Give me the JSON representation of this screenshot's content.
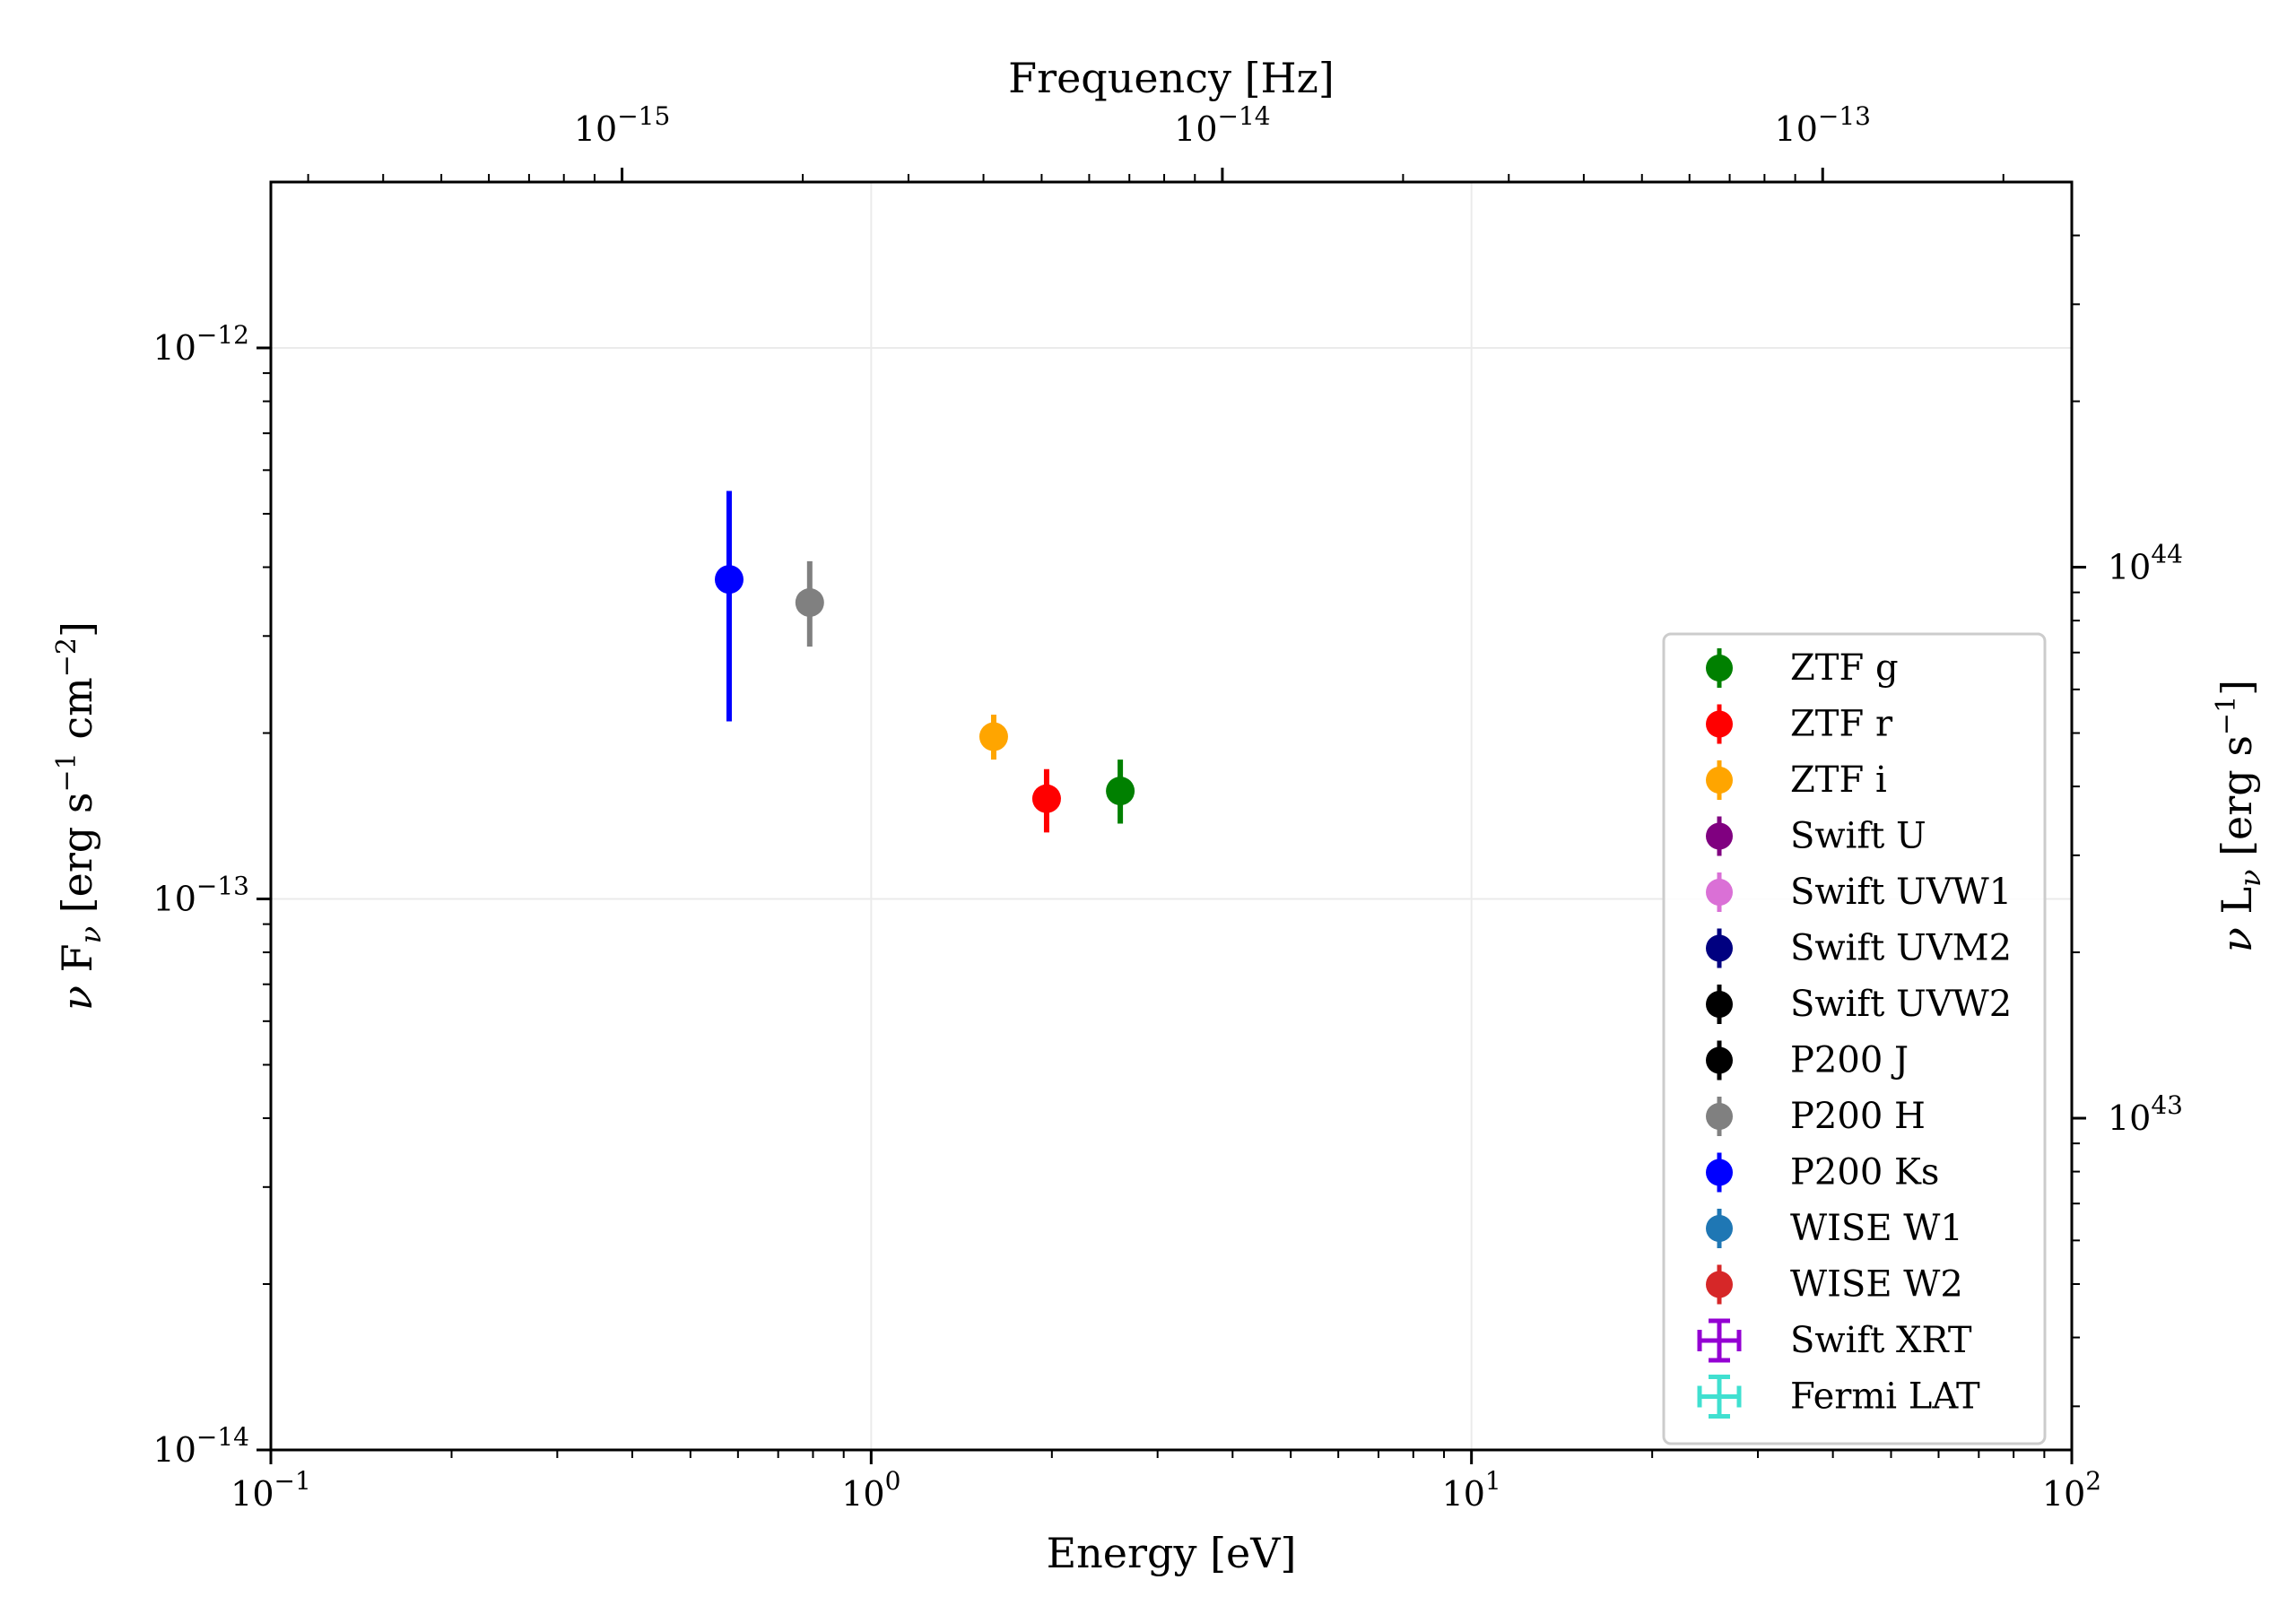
{
  "chart_data": {
    "type": "scatter",
    "title": "",
    "xlabel": "Energy [eV]",
    "ylabel": "ν F_ν [erg s⁻¹ cm⁻²]",
    "top_xlabel": "Frequency [Hz]",
    "right_ylabel": "ν L_ν [erg s⁻¹]",
    "xscale": "log",
    "yscale": "log",
    "xlim": [
      0.1,
      100
    ],
    "ylim": [
      1e-14,
      2e-12
    ],
    "x_ticks": [
      {
        "value": 0.1,
        "base": "10",
        "exp": "−1"
      },
      {
        "value": 1,
        "base": "10",
        "exp": "0"
      },
      {
        "value": 10,
        "base": "10",
        "exp": "1"
      },
      {
        "value": 100,
        "base": "10",
        "exp": "2"
      }
    ],
    "y_ticks": [
      {
        "value": 1e-14,
        "base": "10",
        "exp": "−14"
      },
      {
        "value": 1e-13,
        "base": "10",
        "exp": "−13"
      },
      {
        "value": 1e-12,
        "base": "10",
        "exp": "−12"
      }
    ],
    "top_ticks": [
      {
        "value": 1e-15,
        "base": "10",
        "exp": "−15"
      },
      {
        "value": 1e-14,
        "base": "10",
        "exp": "−14"
      },
      {
        "value": 1e-13,
        "base": "10",
        "exp": "−13"
      }
    ],
    "top_xlim": [
      2.6e-16,
      2.6e-13
    ],
    "right_ticks": [
      {
        "value": 1e+43,
        "base": "10",
        "exp": "43"
      },
      {
        "value": 1e+44,
        "base": "10",
        "exp": "44"
      }
    ],
    "right_ylim": [
      2.5e+42,
      5e+44
    ],
    "grid": true,
    "legend_position": "lower-right",
    "series": [
      {
        "name": "ZTF g",
        "color": "#008000",
        "marker": "point",
        "points": [
          {
            "x": 2.6,
            "y": 1.57e-13,
            "ylo": 1.37e-13,
            "yhi": 1.79e-13
          }
        ]
      },
      {
        "name": "ZTF r",
        "color": "#ff0000",
        "marker": "point",
        "points": [
          {
            "x": 1.96,
            "y": 1.52e-13,
            "ylo": 1.32e-13,
            "yhi": 1.72e-13
          }
        ]
      },
      {
        "name": "ZTF i",
        "color": "#ffa500",
        "marker": "point",
        "points": [
          {
            "x": 1.6,
            "y": 1.97e-13,
            "ylo": 1.79e-13,
            "yhi": 2.16e-13
          }
        ]
      },
      {
        "name": "Swift U",
        "color": "#800080",
        "marker": "point",
        "points": []
      },
      {
        "name": "Swift UVW1",
        "color": "#da70d6",
        "marker": "point",
        "points": []
      },
      {
        "name": "Swift UVM2",
        "color": "#000080",
        "marker": "point",
        "points": []
      },
      {
        "name": "Swift UVW2",
        "color": "#000000",
        "marker": "point",
        "points": []
      },
      {
        "name": "P200 J",
        "color": "#000000",
        "marker": "point",
        "points": []
      },
      {
        "name": "P200 H",
        "color": "#808080",
        "marker": "point",
        "points": [
          {
            "x": 0.79,
            "y": 3.45e-13,
            "ylo": 2.87e-13,
            "yhi": 4.1e-13
          }
        ]
      },
      {
        "name": "P200 Ks",
        "color": "#0000ff",
        "marker": "point",
        "points": [
          {
            "x": 0.58,
            "y": 3.8e-13,
            "ylo": 2.1e-13,
            "yhi": 5.5e-13
          }
        ]
      },
      {
        "name": "WISE W1",
        "color": "#1f77b4",
        "marker": "point",
        "points": []
      },
      {
        "name": "WISE W2",
        "color": "#d62728",
        "marker": "point",
        "points": []
      },
      {
        "name": "Swift XRT",
        "color": "#9400d3",
        "marker": "cross",
        "points": []
      },
      {
        "name": "Fermi LAT",
        "color": "#40e0d0",
        "marker": "cross",
        "points": []
      }
    ]
  }
}
